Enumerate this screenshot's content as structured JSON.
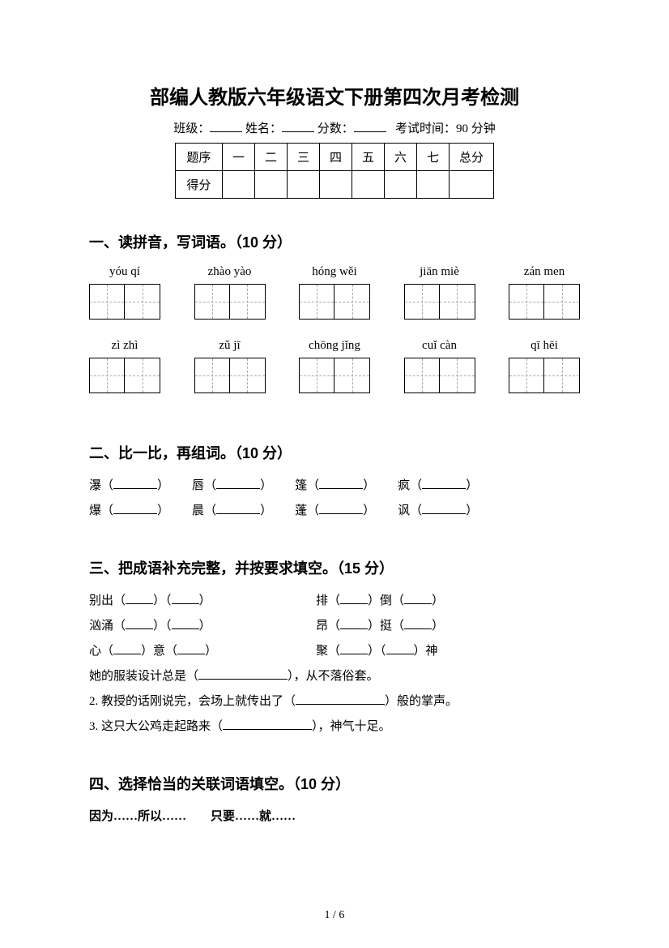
{
  "title": "部编人教版六年级语文下册第四次月考检测",
  "info": {
    "class_label": "班级：",
    "name_label": "姓名：",
    "score_label": "分数：",
    "time_label": "考试时间：90 分钟"
  },
  "score_table": {
    "header": [
      "题序",
      "一",
      "二",
      "三",
      "四",
      "五",
      "六",
      "七",
      "总分"
    ],
    "row2_label": "得分"
  },
  "section1": {
    "heading": "一、读拼音，写词语。（10 分）",
    "row1": [
      "yóu qí",
      "zhào yào",
      "hóng wěi",
      "jiān miè",
      "zán men"
    ],
    "row2": [
      "zì zhì",
      "zǔ jī",
      "chōng jǐng",
      "cuǐ càn",
      "qī hēi"
    ]
  },
  "section2": {
    "heading": "二、比一比，再组词。（10 分）",
    "pairs": [
      [
        "瀑",
        "唇",
        "篷",
        "疯"
      ],
      [
        "爆",
        "晨",
        "蓬",
        "讽"
      ]
    ]
  },
  "section3": {
    "heading": "三、把成语补充完整，并按要求填空。（15 分）",
    "idioms_left": [
      "别出（____）（____）",
      "汹涌（____）（____）",
      "心（____）意（____）"
    ],
    "idioms_right": [
      "排（____）倒（____）",
      "昂（____）挺（____）",
      "聚（____）（____）神"
    ],
    "sentence1_a": "她的服装设计总是（",
    "sentence1_b": "），从不落俗套。",
    "sentence2_a": "2. 教授的话刚说完，会场上就传出了（",
    "sentence2_b": "）般的掌声。",
    "sentence3_a": "3. 这只大公鸡走起路来（",
    "sentence3_b": "），神气十足。"
  },
  "section4": {
    "heading": "四、选择恰当的关联词语填空。（10 分）",
    "options": "因为……所以……　　只要……就……"
  },
  "page_num": "1 / 6"
}
